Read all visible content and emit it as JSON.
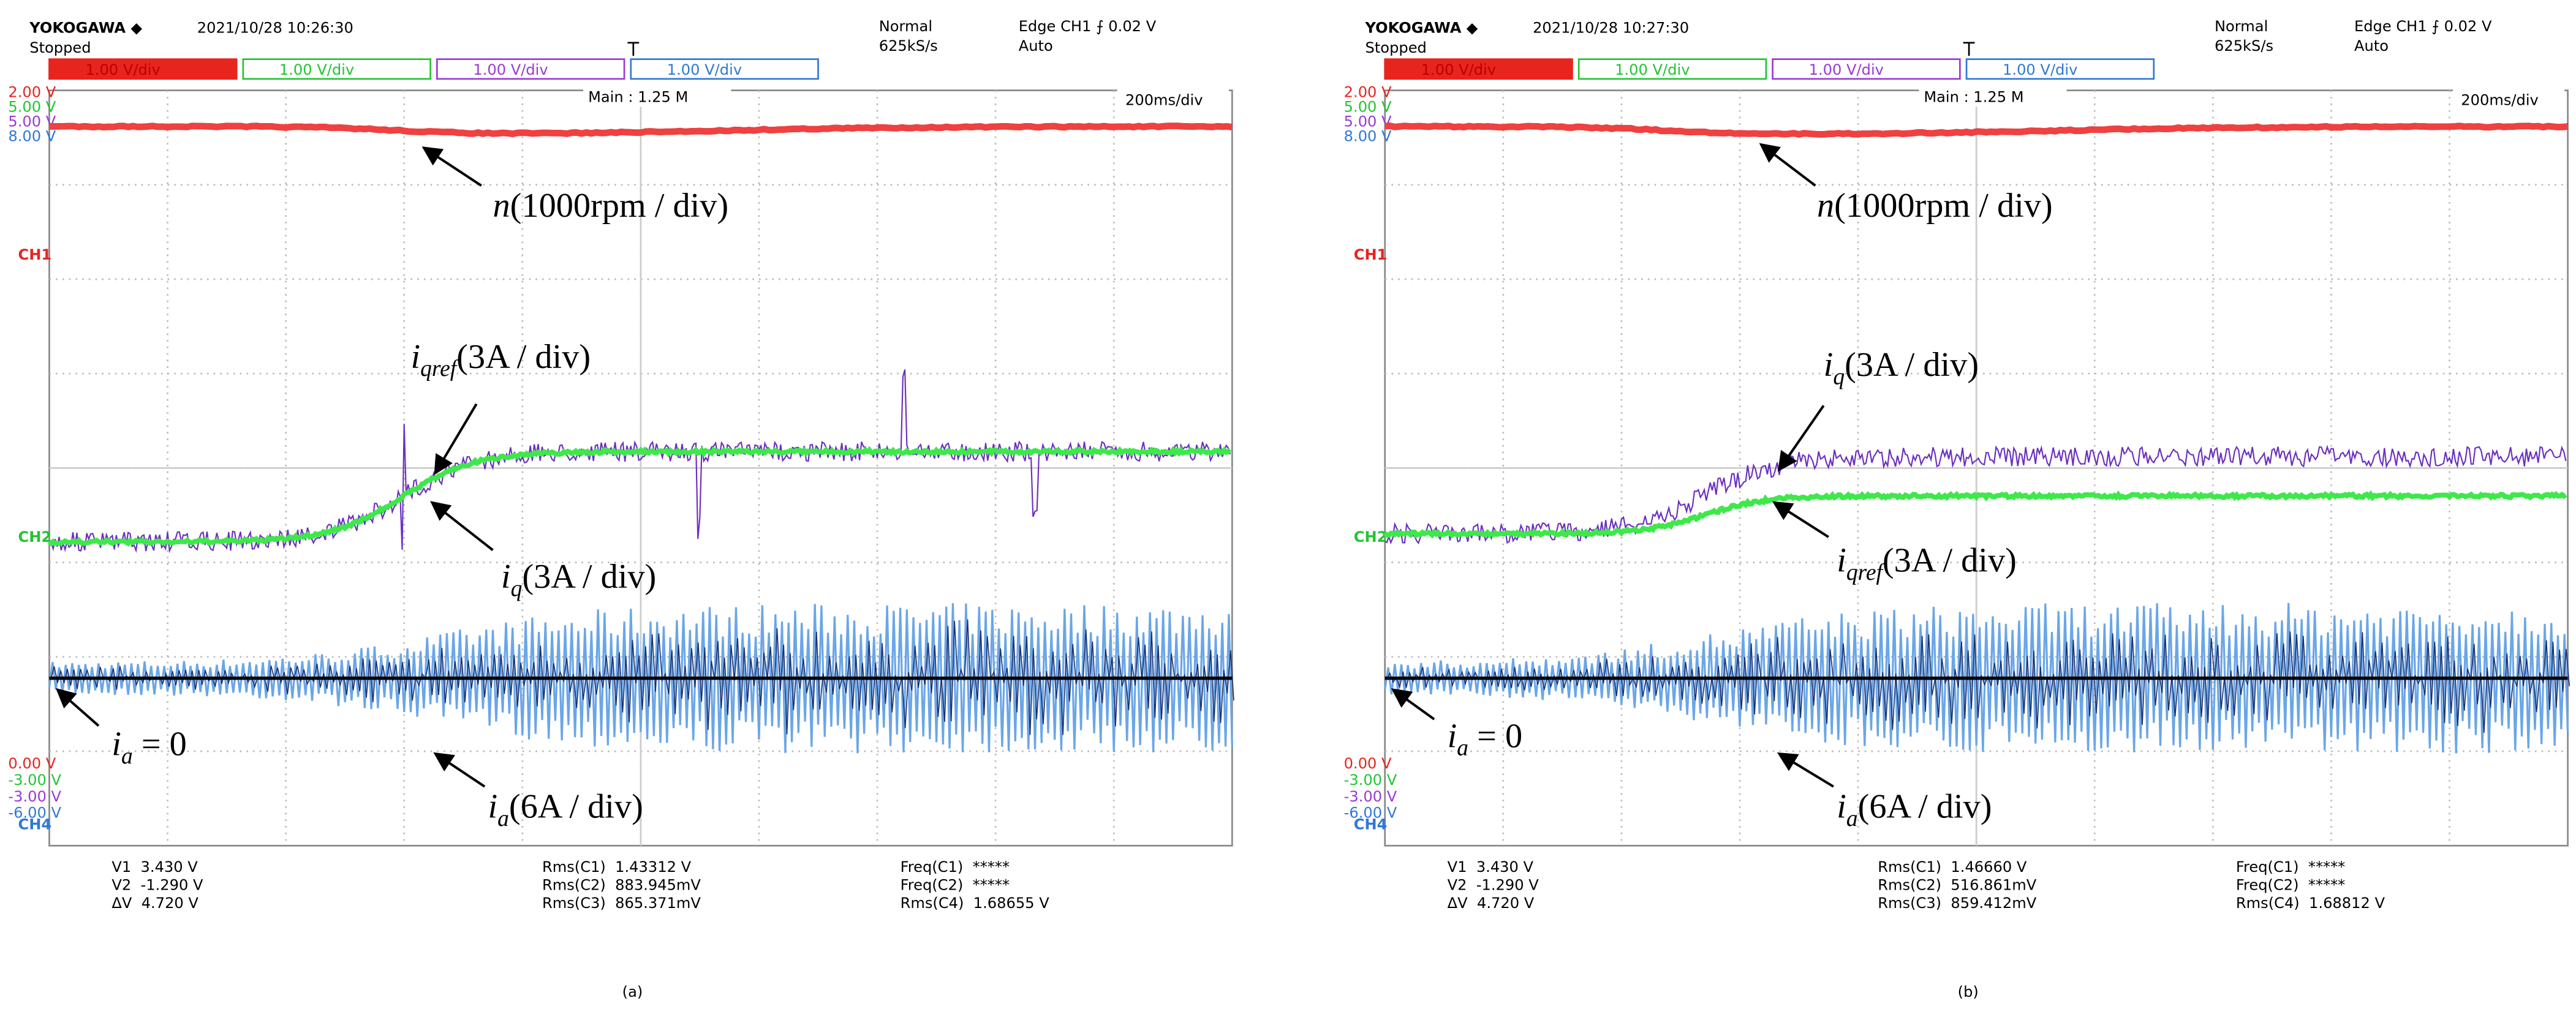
{
  "panels": [
    {
      "header": {
        "brand": "YOKOGAWA ◆",
        "datetime": "2021/10/28 10:26:30",
        "status": "Stopped",
        "mode": "Normal",
        "rate": "625kS/s",
        "trigger": "Edge CH1 ⨍ 0.02 V",
        "trigger_mode": "Auto"
      },
      "channels": [
        "1.00 V/div",
        "1.00 V/div",
        "1.00 V/div",
        "1.00 V/div"
      ],
      "main": "Main : 1.25 M",
      "timebase": "200ms/div",
      "scale_top": [
        "2.00 V",
        "5.00 V",
        "5.00 V",
        "8.00 V"
      ],
      "scale_bottom": [
        "0.00 V",
        "-3.00 V",
        "-3.00 V",
        "-6.00 V"
      ],
      "markers": [
        "CH1",
        "CH2",
        "CH4"
      ],
      "annotations": [
        {
          "base": "n",
          "rest": "(1000rpm / div)"
        },
        {
          "base": "i",
          "sub": "qref",
          "rest": "(3A / div)"
        },
        {
          "base": "i",
          "sub": "q",
          "rest": "(3A / div)"
        },
        {
          "base": "i",
          "sub": "a",
          "rest": " = 0"
        },
        {
          "base": "i",
          "sub": "a",
          "rest": "(6A / div)"
        }
      ],
      "cursors": [
        "V1  3.430 V",
        "V2  -1.290 V",
        "ΔV  4.720 V"
      ],
      "rms": [
        "Rms(C1)  1.43312 V",
        "Rms(C2)  883.945mV",
        "Rms(C3)  865.371mV"
      ],
      "freq": [
        "Freq(C1)  *****",
        "Freq(C2)  *****",
        "Rms(C4)  1.68655 V"
      ],
      "caption": "(a)"
    },
    {
      "header": {
        "brand": "YOKOGAWA ◆",
        "datetime": "2021/10/28 10:27:30",
        "status": "Stopped",
        "mode": "Normal",
        "rate": "625kS/s",
        "trigger": "Edge CH1 ⨍ 0.02 V",
        "trigger_mode": "Auto"
      },
      "channels": [
        "1.00 V/div",
        "1.00 V/div",
        "1.00 V/div",
        "1.00 V/div"
      ],
      "main": "Main : 1.25 M",
      "timebase": "200ms/div",
      "scale_top": [
        "2.00 V",
        "5.00 V",
        "5.00 V",
        "8.00 V"
      ],
      "scale_bottom": [
        "0.00 V",
        "-3.00 V",
        "-3.00 V",
        "-6.00 V"
      ],
      "markers": [
        "CH1",
        "CH2",
        "CH4"
      ],
      "annotations": [
        {
          "base": "n",
          "rest": "(1000rpm / div)"
        },
        {
          "base": "i",
          "sub": "q",
          "rest": "(3A / div)"
        },
        {
          "base": "i",
          "sub": "qref",
          "rest": "(3A / div)"
        },
        {
          "base": "i",
          "sub": "a",
          "rest": " = 0"
        },
        {
          "base": "i",
          "sub": "a",
          "rest": "(6A / div)"
        }
      ],
      "cursors": [
        "V1  3.430 V",
        "V2  -1.290 V",
        "ΔV  4.720 V"
      ],
      "rms": [
        "Rms(C1)  1.46660 V",
        "Rms(C2)  516.861mV",
        "Rms(C3)  859.412mV"
      ],
      "freq": [
        "Freq(C1)  *****",
        "Freq(C2)  *****",
        "Rms(C4)  1.68812 V"
      ],
      "caption": "(b)"
    }
  ]
}
